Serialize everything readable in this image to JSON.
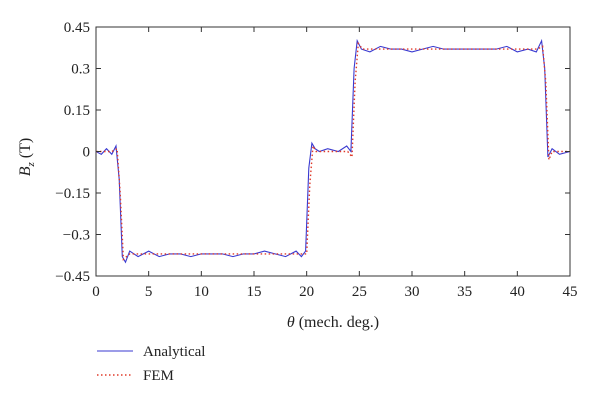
{
  "chart_data": {
    "type": "line",
    "xlabel": "θ (mech. deg.)",
    "ylabel": "B_z (T)",
    "xlim": [
      0,
      45
    ],
    "ylim": [
      -0.45,
      0.45
    ],
    "x_ticks": [
      0,
      5,
      10,
      15,
      20,
      25,
      30,
      35,
      40,
      45
    ],
    "x_tick_labels": [
      "0",
      "5",
      "10",
      "15",
      "20",
      "25",
      "30",
      "35",
      "40",
      "45"
    ],
    "y_ticks": [
      0.45,
      0.3,
      0.15,
      0,
      -0.15,
      -0.3,
      -0.45
    ],
    "y_tick_labels": [
      "0.45",
      "0.3",
      "0.15",
      "0",
      "−0.15",
      "−0.3",
      "−0.45"
    ],
    "grid": false,
    "legend_position": "below-left",
    "series": [
      {
        "name": "Analytical",
        "color": "#3a3ad0",
        "style": "solid",
        "x": [
          0,
          0.5,
          1.0,
          1.5,
          1.9,
          2.2,
          2.5,
          2.8,
          3.2,
          4,
          5,
          6,
          7,
          8,
          9,
          10,
          11,
          12,
          13,
          14,
          15,
          16,
          17,
          18,
          19,
          19.5,
          19.9,
          20.2,
          20.5,
          20.8,
          21.2,
          22,
          23,
          23.8,
          24.2,
          24.5,
          24.8,
          25.2,
          26,
          27,
          28,
          29,
          30,
          31,
          32,
          33,
          34,
          35,
          36,
          37,
          38,
          39,
          40,
          41,
          41.8,
          42.3,
          42.6,
          42.9,
          43.3,
          44,
          45
        ],
        "y": [
          0.0,
          -0.01,
          0.01,
          -0.01,
          0.02,
          -0.1,
          -0.38,
          -0.4,
          -0.36,
          -0.38,
          -0.36,
          -0.38,
          -0.37,
          -0.37,
          -0.38,
          -0.37,
          -0.37,
          -0.37,
          -0.38,
          -0.37,
          -0.37,
          -0.36,
          -0.37,
          -0.38,
          -0.36,
          -0.38,
          -0.36,
          -0.06,
          0.03,
          0.01,
          0.0,
          0.01,
          0.0,
          0.02,
          0.0,
          0.3,
          0.4,
          0.37,
          0.36,
          0.38,
          0.37,
          0.37,
          0.36,
          0.37,
          0.38,
          0.37,
          0.37,
          0.37,
          0.37,
          0.37,
          0.37,
          0.38,
          0.36,
          0.37,
          0.36,
          0.4,
          0.3,
          -0.02,
          0.01,
          -0.01,
          0.0
        ]
      },
      {
        "name": "FEM",
        "color": "#e03a2a",
        "style": "dotted",
        "x": [
          0,
          0.5,
          1.0,
          1.5,
          2.0,
          2.3,
          2.6,
          2.9,
          3.2,
          4,
          5,
          6,
          7,
          8,
          9,
          10,
          11,
          12,
          13,
          14,
          15,
          16,
          17,
          18,
          19,
          19.6,
          20.0,
          20.3,
          20.6,
          20.9,
          21.2,
          22,
          23,
          23.9,
          24.3,
          24.6,
          24.9,
          25.3,
          26,
          27,
          28,
          29,
          30,
          31,
          32,
          33,
          34,
          35,
          36,
          37,
          38,
          39,
          40,
          41,
          41.9,
          42.4,
          42.7,
          43.0,
          43.3,
          44,
          45
        ],
        "y": [
          0.0,
          0.0,
          0.0,
          0.0,
          0.01,
          -0.15,
          -0.39,
          -0.38,
          -0.37,
          -0.37,
          -0.37,
          -0.37,
          -0.37,
          -0.37,
          -0.37,
          -0.37,
          -0.37,
          -0.37,
          -0.37,
          -0.37,
          -0.37,
          -0.37,
          -0.37,
          -0.37,
          -0.37,
          -0.37,
          -0.37,
          -0.12,
          0.02,
          0.0,
          0.0,
          0.0,
          0.0,
          0.0,
          -0.02,
          0.25,
          0.39,
          0.37,
          0.37,
          0.37,
          0.37,
          0.37,
          0.37,
          0.37,
          0.37,
          0.37,
          0.37,
          0.37,
          0.37,
          0.37,
          0.37,
          0.37,
          0.37,
          0.37,
          0.37,
          0.38,
          0.25,
          -0.03,
          0.0,
          0.0,
          0.0
        ]
      }
    ]
  }
}
